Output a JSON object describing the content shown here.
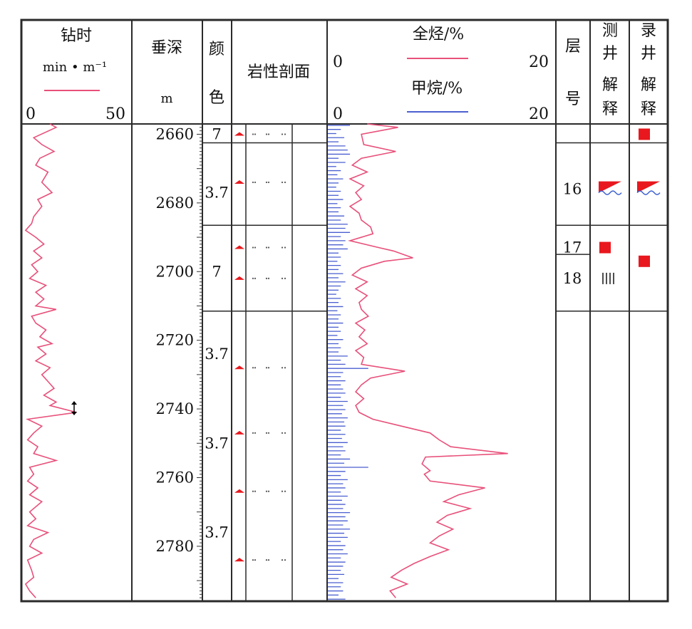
{
  "headers": {
    "drill": {
      "title": "钻时",
      "unit": "min • m⁻¹",
      "min": "0",
      "max": "50"
    },
    "depth": {
      "title": "垂深",
      "unit": "m"
    },
    "color": {
      "line1": "颜",
      "line2": "色"
    },
    "litho": {
      "title": "岩性剖面"
    },
    "gas": {
      "total": "全烃/%",
      "methane": "甲烷/%",
      "min1": "0",
      "max1": "20",
      "min2": "0",
      "max2": "20"
    },
    "layer": {
      "line1": "层",
      "line2": "号"
    },
    "log_interp": {
      "chars": [
        "测",
        "井",
        "解",
        "释"
      ]
    },
    "mud_interp": {
      "chars": [
        "录",
        "井",
        "解",
        "释"
      ]
    }
  },
  "colors": {
    "drill_curve": "#e8507a",
    "total_gas": "#e8507a",
    "methane": "#4a5fd0",
    "marker": "#e8181e",
    "water": "#3a5fd0",
    "frame": "#2a2a2a"
  },
  "chart_data": {
    "type": "line",
    "depth_axis": {
      "label": "垂深",
      "unit": "m",
      "range": [
        2657,
        2796
      ],
      "ticks": [
        2660,
        2680,
        2700,
        2720,
        2740,
        2760,
        2780
      ]
    },
    "drill_time": {
      "xlim": [
        0,
        50
      ],
      "points": [
        [
          13,
          2657
        ],
        [
          16,
          2658
        ],
        [
          5,
          2661
        ],
        [
          9,
          2663
        ],
        [
          15,
          2665
        ],
        [
          8,
          2667
        ],
        [
          6,
          2669
        ],
        [
          12,
          2671
        ],
        [
          9,
          2674
        ],
        [
          14,
          2677
        ],
        [
          7,
          2679
        ],
        [
          9,
          2681
        ],
        [
          5,
          2684
        ],
        [
          4,
          2686
        ],
        [
          1,
          2688
        ],
        [
          6,
          2690
        ],
        [
          10,
          2692
        ],
        [
          5,
          2694
        ],
        [
          9,
          2696
        ],
        [
          4,
          2698
        ],
        [
          7,
          2700
        ],
        [
          3,
          2702
        ],
        [
          11,
          2704
        ],
        [
          6,
          2706
        ],
        [
          10,
          2708
        ],
        [
          6,
          2710
        ],
        [
          16,
          2711
        ],
        [
          4,
          2713
        ],
        [
          6,
          2715
        ],
        [
          11,
          2717
        ],
        [
          8,
          2719
        ],
        [
          14,
          2721
        ],
        [
          7,
          2722
        ],
        [
          11,
          2724
        ],
        [
          6,
          2726
        ],
        [
          13,
          2728
        ],
        [
          9,
          2730
        ],
        [
          12,
          2732
        ],
        [
          15,
          2734
        ],
        [
          10,
          2736
        ],
        [
          16,
          2738
        ],
        [
          13,
          2739
        ],
        [
          26,
          2741
        ],
        [
          2,
          2743
        ],
        [
          9,
          2745
        ],
        [
          5,
          2747
        ],
        [
          2,
          2749
        ],
        [
          7,
          2751
        ],
        [
          5,
          2753
        ],
        [
          16,
          2755
        ],
        [
          3,
          2757
        ],
        [
          5,
          2759
        ],
        [
          2,
          2761
        ],
        [
          7,
          2763
        ],
        [
          3,
          2765
        ],
        [
          9,
          2767
        ],
        [
          3,
          2770
        ],
        [
          6,
          2772
        ],
        [
          2,
          2774
        ],
        [
          12,
          2776
        ],
        [
          5,
          2778
        ],
        [
          3,
          2780
        ],
        [
          9,
          2782
        ],
        [
          2,
          2784
        ],
        [
          4,
          2787
        ],
        [
          5,
          2789
        ],
        [
          1,
          2791
        ],
        [
          3,
          2793
        ],
        [
          6,
          2795
        ]
      ]
    },
    "total_hydrocarbon": {
      "xlim": [
        0,
        20
      ],
      "points": [
        [
          3.5,
          2657
        ],
        [
          6.2,
          2658
        ],
        [
          3.0,
          2660
        ],
        [
          3.2,
          2663
        ],
        [
          6.0,
          2665
        ],
        [
          3.0,
          2667
        ],
        [
          2.2,
          2669
        ],
        [
          3.5,
          2671
        ],
        [
          2.0,
          2673
        ],
        [
          3.2,
          2675
        ],
        [
          2.5,
          2677
        ],
        [
          3.0,
          2679
        ],
        [
          2.0,
          2681
        ],
        [
          2.8,
          2683
        ],
        [
          3.0,
          2685
        ],
        [
          3.8,
          2687
        ],
        [
          4.0,
          2689
        ],
        [
          2.0,
          2691
        ],
        [
          4.5,
          2693
        ],
        [
          5.8,
          2694
        ],
        [
          7.5,
          2696
        ],
        [
          5.0,
          2697
        ],
        [
          3.0,
          2699
        ],
        [
          2.2,
          2701
        ],
        [
          3.5,
          2703
        ],
        [
          2.5,
          2705
        ],
        [
          3.5,
          2707
        ],
        [
          2.8,
          2709
        ],
        [
          3.0,
          2711
        ],
        [
          3.6,
          2713
        ],
        [
          2.5,
          2715
        ],
        [
          3.3,
          2717
        ],
        [
          2.8,
          2719
        ],
        [
          3.5,
          2721
        ],
        [
          2.5,
          2723
        ],
        [
          3.2,
          2725
        ],
        [
          3.0,
          2727
        ],
        [
          6.8,
          2729
        ],
        [
          3.8,
          2731
        ],
        [
          3.0,
          2733
        ],
        [
          2.5,
          2735
        ],
        [
          3.2,
          2737
        ],
        [
          2.5,
          2739
        ],
        [
          2.8,
          2741
        ],
        [
          4.0,
          2743
        ],
        [
          6.5,
          2745
        ],
        [
          9.0,
          2747
        ],
        [
          9.8,
          2749
        ],
        [
          10.8,
          2751
        ],
        [
          15.8,
          2753
        ],
        [
          8.6,
          2754
        ],
        [
          8.3,
          2756
        ],
        [
          9.0,
          2758
        ],
        [
          8.5,
          2759
        ],
        [
          9.0,
          2761
        ],
        [
          13.8,
          2763
        ],
        [
          11.5,
          2765
        ],
        [
          10.2,
          2767
        ],
        [
          12.5,
          2769
        ],
        [
          10.5,
          2771
        ],
        [
          9.6,
          2773
        ],
        [
          11.0,
          2775
        ],
        [
          9.8,
          2777
        ],
        [
          9.0,
          2779
        ],
        [
          10.6,
          2781
        ],
        [
          9.0,
          2783
        ],
        [
          7.6,
          2785
        ],
        [
          6.5,
          2787
        ],
        [
          5.6,
          2789
        ],
        [
          7.0,
          2791
        ],
        [
          5.5,
          2793
        ],
        [
          6.0,
          2795
        ]
      ]
    },
    "methane": {
      "xlim": [
        0,
        20
      ],
      "points": [
        [
          2.0,
          2657.4
        ],
        [
          1.2,
          2658.6
        ],
        [
          0.8,
          2659.8
        ],
        [
          1.5,
          2661.0
        ],
        [
          1.0,
          2662.2
        ],
        [
          1.6,
          2663.4
        ],
        [
          1.8,
          2664.6
        ],
        [
          2.0,
          2665.8
        ],
        [
          1.0,
          2667.0
        ],
        [
          1.6,
          2668.2
        ],
        [
          0.8,
          2669.4
        ],
        [
          1.2,
          2670.6
        ],
        [
          0.9,
          2671.8
        ],
        [
          1.4,
          2673.0
        ],
        [
          1.0,
          2674.2
        ],
        [
          0.8,
          2675.4
        ],
        [
          1.2,
          2676.6
        ],
        [
          1.0,
          2677.8
        ],
        [
          1.4,
          2679.0
        ],
        [
          0.9,
          2680.2
        ],
        [
          1.2,
          2681.4
        ],
        [
          1.0,
          2682.6
        ],
        [
          1.5,
          2683.8
        ],
        [
          1.2,
          2685.0
        ],
        [
          1.8,
          2686.2
        ],
        [
          1.6,
          2687.4
        ],
        [
          2.0,
          2688.6
        ],
        [
          1.2,
          2689.8
        ],
        [
          1.6,
          2691.0
        ],
        [
          1.4,
          2692.2
        ],
        [
          1.8,
          2693.4
        ],
        [
          1.0,
          2694.6
        ],
        [
          1.2,
          2695.8
        ],
        [
          0.9,
          2697.0
        ],
        [
          1.2,
          2698.2
        ],
        [
          1.0,
          2699.4
        ],
        [
          1.4,
          2700.6
        ],
        [
          1.0,
          2701.8
        ],
        [
          1.6,
          2703.0
        ],
        [
          1.2,
          2704.2
        ],
        [
          1.0,
          2705.4
        ],
        [
          0.8,
          2706.6
        ],
        [
          1.2,
          2707.8
        ],
        [
          1.0,
          2709.0
        ],
        [
          1.4,
          2710.2
        ],
        [
          0.9,
          2711.4
        ],
        [
          1.2,
          2712.6
        ],
        [
          1.0,
          2713.8
        ],
        [
          1.4,
          2715.0
        ],
        [
          1.0,
          2716.2
        ],
        [
          1.2,
          2717.4
        ],
        [
          0.9,
          2718.6
        ],
        [
          1.4,
          2719.8
        ],
        [
          1.0,
          2721.0
        ],
        [
          1.2,
          2722.2
        ],
        [
          1.0,
          2723.4
        ],
        [
          1.8,
          2724.6
        ],
        [
          1.2,
          2725.8
        ],
        [
          1.6,
          2727.0
        ],
        [
          3.6,
          2728.2
        ],
        [
          1.4,
          2729.4
        ],
        [
          1.2,
          2730.6
        ],
        [
          1.6,
          2731.8
        ],
        [
          1.2,
          2733.0
        ],
        [
          1.4,
          2734.2
        ],
        [
          1.6,
          2735.4
        ],
        [
          1.2,
          2736.6
        ],
        [
          1.8,
          2737.8
        ],
        [
          1.4,
          2739.0
        ],
        [
          1.6,
          2740.2
        ],
        [
          1.3,
          2741.4
        ],
        [
          1.8,
          2742.6
        ],
        [
          1.5,
          2743.8
        ],
        [
          1.6,
          2745.0
        ],
        [
          1.2,
          2746.2
        ],
        [
          1.6,
          2747.4
        ],
        [
          1.3,
          2748.6
        ],
        [
          1.8,
          2749.8
        ],
        [
          1.4,
          2751.0
        ],
        [
          1.6,
          2752.2
        ],
        [
          1.2,
          2753.4
        ],
        [
          2.0,
          2754.6
        ],
        [
          1.5,
          2755.8
        ],
        [
          3.6,
          2757.0
        ],
        [
          1.6,
          2758.2
        ],
        [
          1.2,
          2759.4
        ],
        [
          1.8,
          2760.6
        ],
        [
          1.4,
          2761.8
        ],
        [
          1.6,
          2763.0
        ],
        [
          1.2,
          2764.2
        ],
        [
          1.8,
          2765.4
        ],
        [
          1.3,
          2766.6
        ],
        [
          1.6,
          2767.8
        ],
        [
          1.4,
          2769.0
        ],
        [
          2.0,
          2770.2
        ],
        [
          1.6,
          2771.4
        ],
        [
          1.8,
          2772.6
        ],
        [
          1.4,
          2773.8
        ],
        [
          2.0,
          2775.0
        ],
        [
          1.5,
          2776.2
        ],
        [
          1.8,
          2777.4
        ],
        [
          1.2,
          2778.6
        ],
        [
          1.6,
          2779.8
        ],
        [
          1.4,
          2781.0
        ],
        [
          1.8,
          2782.2
        ],
        [
          1.2,
          2783.4
        ],
        [
          1.6,
          2784.6
        ],
        [
          1.4,
          2785.8
        ],
        [
          1.2,
          2787.0
        ],
        [
          1.5,
          2788.2
        ],
        [
          1.0,
          2789.4
        ],
        [
          1.4,
          2790.6
        ],
        [
          1.2,
          2791.8
        ],
        [
          1.4,
          2793.0
        ],
        [
          1.0,
          2794.2
        ],
        [
          1.6,
          2795.4
        ]
      ]
    },
    "color_codes": [
      {
        "text": "7",
        "depth": 2660
      },
      {
        "text": "3.7",
        "depth": 2677
      },
      {
        "text": "7",
        "depth": 2700
      },
      {
        "text": "3.7",
        "depth": 2724
      },
      {
        "text": "3.7",
        "depth": 2750
      },
      {
        "text": "3.7",
        "depth": 2776
      }
    ],
    "color_boundaries": [
      2662.5,
      2686.5,
      2711.5
    ],
    "lithology_markers": [
      2660,
      2674,
      2693,
      2702,
      2728,
      2747,
      2764,
      2784
    ],
    "lithology_boundaries": [
      2662.5,
      2686.5,
      2711.5
    ],
    "layers": [
      {
        "label": "16",
        "depth": 2676,
        "log": "oil-water",
        "mud": "oil-water"
      },
      {
        "label": "17",
        "depth": 2693,
        "log": "oil",
        "mud": "oil"
      },
      {
        "label": "18",
        "depth": 2702,
        "log": "dry",
        "mud": ""
      }
    ],
    "interp_top_oil": {
      "mud": 2660
    },
    "mud_oil_17_depth": 2697,
    "layer_boundaries": [
      2662.5,
      2686.5,
      2695,
      2711.5
    ],
    "log_boundaries": [
      2662.5,
      2686.5,
      2711.5
    ],
    "mud_boundaries": [
      2662.5,
      2686.5,
      2711.5
    ]
  }
}
